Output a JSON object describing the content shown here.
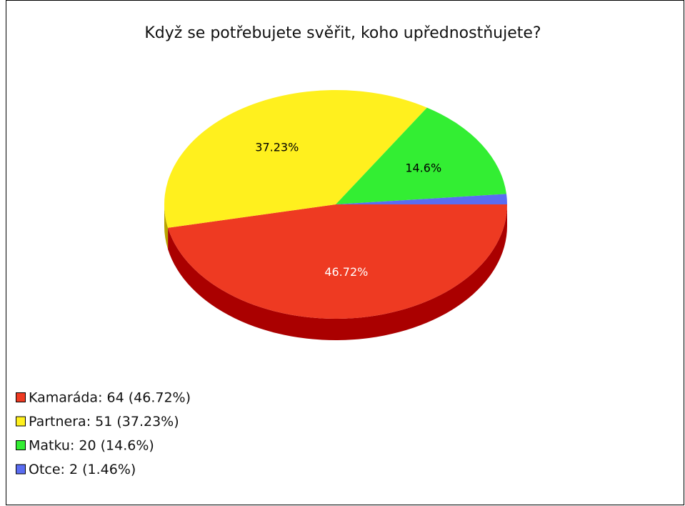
{
  "chart_data": {
    "type": "pie",
    "title": "Když se potřebujete svěřit, koho upřednostňujete?",
    "categories": [
      "Kamaráda: 64 (46.72%)",
      "Partnera: 51 (37.23%)",
      "Matku: 20 (14.6%)",
      "Otce: 2 (1.46%)"
    ],
    "values": [
      46.72,
      37.23,
      14.6,
      1.46
    ],
    "value_labels": [
      "46.72%",
      "37.23%",
      "14.6%",
      null
    ],
    "colors": [
      "#ee3a22",
      "#fff01e",
      "#33ee33",
      "#5a6cf2"
    ],
    "side_colors": [
      "#aa0000",
      "#b8a400",
      "#0a9a0a",
      "#2233aa"
    ],
    "label_colors": [
      "#ffffff",
      "#000000",
      "#000000",
      "#000000"
    ]
  }
}
